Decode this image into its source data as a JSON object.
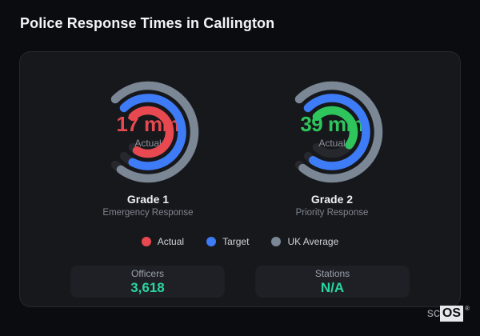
{
  "page": {
    "title": "Police Response Times in Callington"
  },
  "panel": {
    "legend": {
      "items": [
        {
          "label": "Actual",
          "color": "#e8484f"
        },
        {
          "label": "Target",
          "color": "#3d7bf7"
        },
        {
          "label": "UK Average",
          "color": "#7b8795"
        }
      ]
    },
    "stats": {
      "items": [
        {
          "label": "Officers",
          "value": "3,618",
          "value_color": "#2bd5a2"
        },
        {
          "label": "Stations",
          "value": "N/A",
          "value_color": "#2bd5a2"
        }
      ]
    }
  },
  "watermark": {
    "prefix": "sc",
    "brand": "OS",
    "registered": "®"
  },
  "chart_data": [
    {
      "type": "radial-gauge",
      "title": "Grade 1",
      "subtitle": "Emergency Response",
      "center_value": "17 min",
      "center_label": "Actual",
      "value_color": "#e8484f",
      "start_angle_deg": -45,
      "range_deg": 270,
      "track_color": "#26282d",
      "rings": [
        {
          "name": "Actual",
          "color": "#e8484f",
          "sweep_deg": 256
        },
        {
          "name": "Target",
          "color": "#3d7bf7",
          "sweep_deg": 252
        },
        {
          "name": "UK Average",
          "color": "#7b8795",
          "sweep_deg": 261
        }
      ]
    },
    {
      "type": "radial-gauge",
      "title": "Grade 2",
      "subtitle": "Priority Response",
      "center_value": "39 min",
      "center_label": "Actual",
      "value_color": "#2ec55c",
      "start_angle_deg": -45,
      "range_deg": 270,
      "track_color": "#26282d",
      "rings": [
        {
          "name": "Actual",
          "color": "#2ec55c",
          "sweep_deg": 172
        },
        {
          "name": "Target",
          "color": "#3d7bf7",
          "sweep_deg": 259
        },
        {
          "name": "UK Average",
          "color": "#7b8795",
          "sweep_deg": 264
        }
      ]
    }
  ]
}
